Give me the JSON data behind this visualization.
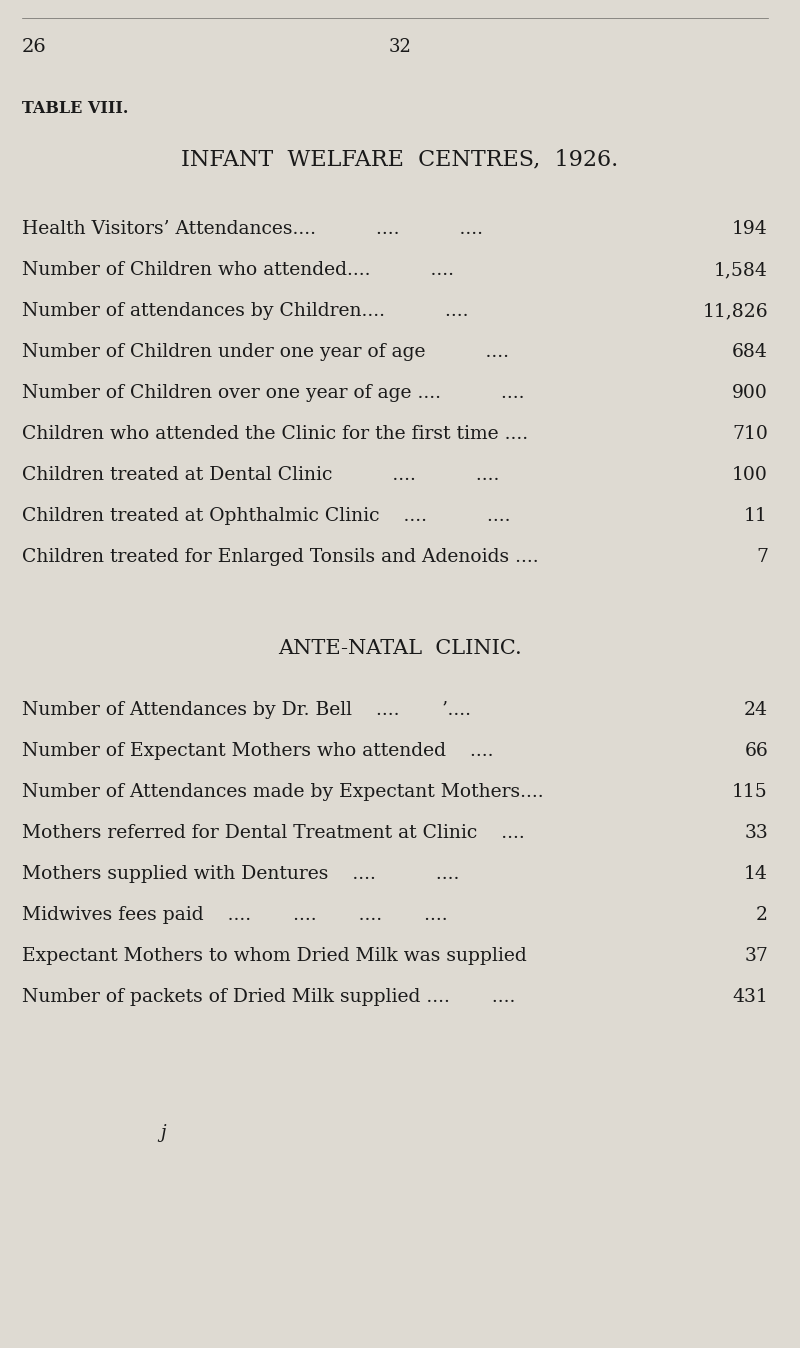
{
  "page_number_top": "32",
  "corner_text": "26",
  "table_label": "TABLE VIII.",
  "title": "INFANT  WELFARE  CENTRES,  1926.",
  "s1_labels": [
    "Health Visitors’ Attendances",
    "Number of Children who attended",
    "Number of attendances by Children",
    "Number of Children under one year of age",
    "Number of Children over one year of age ....",
    "Children who attended the Clinic for the first time ....",
    "Children treated at Dental Clinic",
    "Children treated at Ophthalmic Clinic",
    "Children treated for Enlarged Tonsils and Adenoids ...."
  ],
  "s1_dots": [
    "....          ....          ....",
    "....          ....",
    "....          ....",
    "          ....",
    "          ....",
    "",
    "          ....          ....",
    "    ....          ....",
    ""
  ],
  "s1_values": [
    "194",
    "1,584",
    "11,826",
    "684",
    "900",
    "710",
    "100",
    "11",
    "7"
  ],
  "section2_title": "ANTE-NATAL  CLINIC.",
  "s2_labels": [
    "Number of Attendances by Dr. Bell",
    "Number of Expectant Mothers who attended",
    "Number of Attendances made by Expectant Mothers....",
    "Mothers referred for Dental Treatment at Clinic",
    "Mothers supplied with Dentures",
    "Midwives fees paid",
    "Expectant Mothers to whom Dried Milk was supplied",
    "Number of packets of Dried Milk supplied ...."
  ],
  "s2_dots": [
    "    ....       ʼ....",
    "    ....",
    "",
    "    ....",
    "    ....          ....",
    "    ....       ....       ....       ....",
    "",
    "       ...."
  ],
  "s2_values": [
    "24",
    "66",
    "115",
    "33",
    "14",
    "2",
    "37",
    "431"
  ],
  "bg_color": "#dedad2",
  "text_color": "#1a1a1a",
  "font_size_title": 16,
  "font_size_label": 13.5,
  "font_size_section_title": 15,
  "font_size_table_label": 11.5,
  "font_size_page": 13
}
